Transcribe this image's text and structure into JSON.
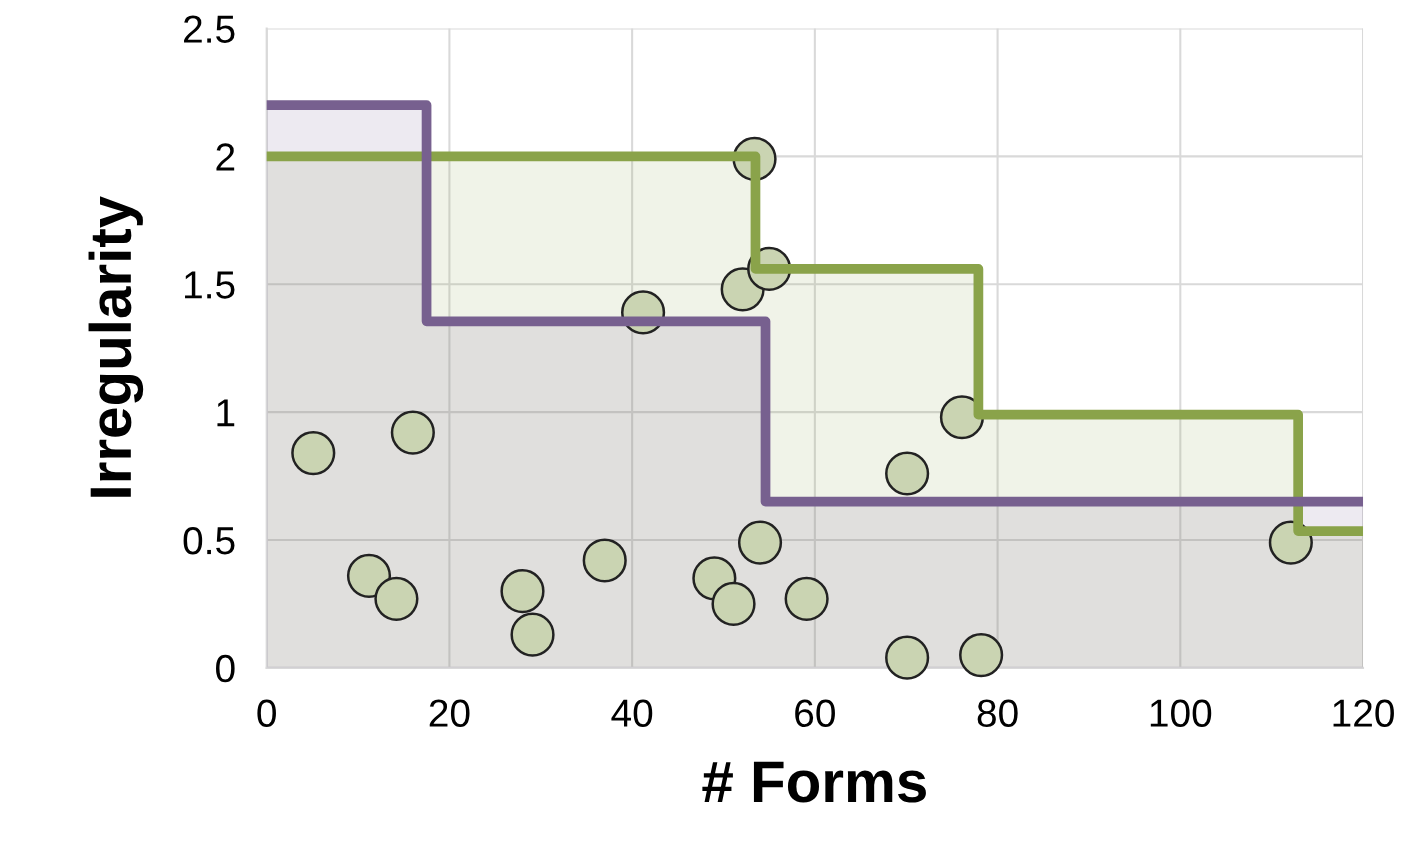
{
  "chart_data": {
    "type": "area",
    "xlabel": "# Forms",
    "ylabel": "Irregularity",
    "xlim": [
      0,
      120
    ],
    "xticks": [
      0,
      20,
      40,
      60,
      80,
      100,
      120
    ],
    "ylim": [
      0,
      2.5
    ],
    "yticks": [
      0,
      0.5,
      1,
      {
        "value": 1.5,
        "label": "1.5"
      },
      2,
      2.5
    ],
    "grid": true,
    "series": [
      {
        "color": "#8aa34a",
        "x": [
          0,
          53.5,
          53.5,
          77.9,
          77.9,
          112.9,
          112.9,
          120
        ],
        "values": [
          2.0,
          2.0,
          1.56,
          1.56,
          0.99,
          0.99,
          0.535,
          0.535
        ]
      },
      {
        "color": "#77608f",
        "x": [
          0,
          17.5,
          17.5,
          54.6,
          54.6,
          120
        ],
        "values": [
          2.2,
          2.2,
          1.355,
          1.355,
          0.65,
          0.65
        ]
      },
      {
        "type": "scatter",
        "marker": "circle",
        "color": "#cad4b2",
        "x": [
          5.1,
          11.2,
          14.2,
          16.0,
          28.0,
          29.1,
          37.0,
          41.2,
          49.0,
          51.1,
          52.1,
          53.4,
          54.0,
          55.0,
          59.1,
          70.1,
          70.1,
          76.1,
          78.2,
          112.1
        ],
        "values": [
          0.84,
          0.36,
          0.27,
          0.92,
          0.3,
          0.13,
          0.42,
          1.39,
          0.35,
          0.25,
          1.48,
          1.99,
          0.49,
          1.56,
          0.27,
          0.76,
          0.04,
          0.98,
          0.05,
          0.49
        ]
      }
    ]
  }
}
